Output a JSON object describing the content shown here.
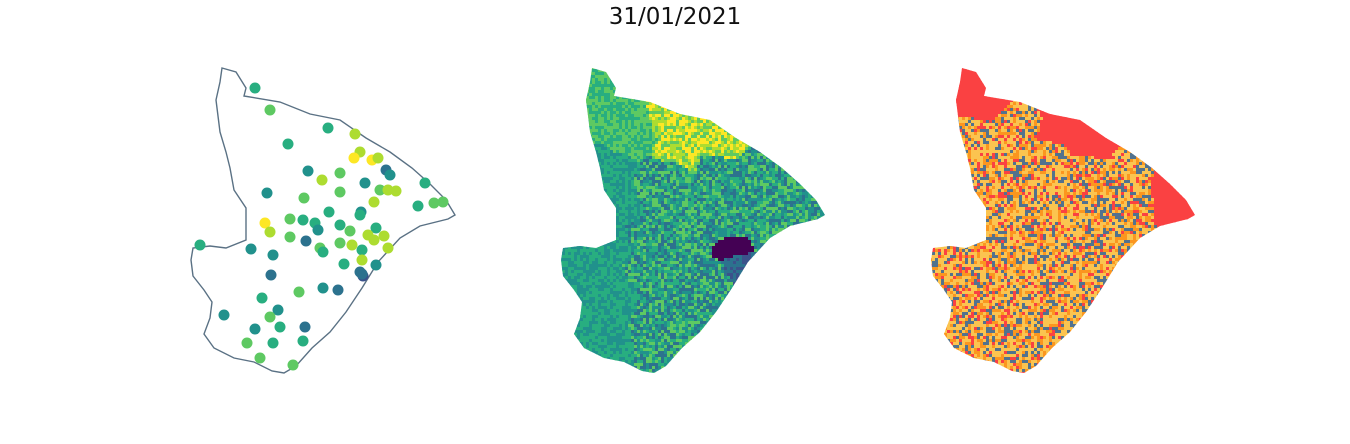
{
  "figure": {
    "title": "31/01/2021"
  },
  "colors": {
    "outline": "#5a7184",
    "viridis": [
      "#440154",
      "#3b528b",
      "#2c728e",
      "#21918c",
      "#28ae80",
      "#5ec962",
      "#addc30",
      "#fde725"
    ],
    "classes": [
      "#fa4142",
      "#fbc450",
      "#fb961f",
      "#52728e"
    ]
  },
  "panels": [
    {
      "id": "points",
      "type": "point-map"
    },
    {
      "id": "choropleth",
      "type": "choropleth-viridis"
    },
    {
      "id": "classes",
      "type": "choropleth-categorical"
    }
  ]
}
